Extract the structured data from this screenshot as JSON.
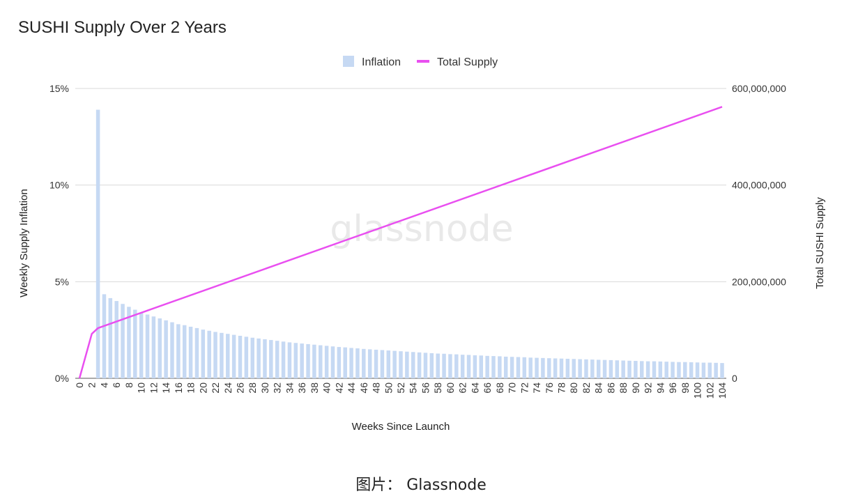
{
  "title": "SUSHI Supply Over 2 Years",
  "caption": "图片： Glassnode",
  "watermark": "glassnode",
  "colors": {
    "bar": "#c6d9f3",
    "line": "#e94ff0",
    "grid": "#d9d9d9"
  },
  "chart_data": {
    "type": "bar+line",
    "xlabel": "Weeks Since Launch",
    "ylabel_left": "Weekly Supply Inflation",
    "ylabel_right": "Total SUSHI Supply",
    "legend": [
      "Inflation",
      "Total Supply"
    ],
    "legend_position": "top-center",
    "grid": true,
    "x_ticks": [
      "0",
      "2",
      "4",
      "6",
      "8",
      "10",
      "12",
      "14",
      "16",
      "18",
      "20",
      "22",
      "24",
      "26",
      "28",
      "30",
      "32",
      "34",
      "36",
      "38",
      "40",
      "42",
      "44",
      "46",
      "48",
      "50",
      "52",
      "54",
      "56",
      "58",
      "60",
      "62",
      "64",
      "66",
      "68",
      "70",
      "72",
      "74",
      "76",
      "78",
      "80",
      "82",
      "84",
      "86",
      "88",
      "90",
      "92",
      "94",
      "96",
      "98",
      "100",
      "102",
      "104"
    ],
    "y_left_ticks": [
      "0%",
      "5%",
      "10%",
      "15%"
    ],
    "y_left_range": [
      0,
      15
    ],
    "y_right_ticks": [
      "0",
      "200,000,000",
      "400,000,000",
      "600,000,000"
    ],
    "y_right_range": [
      0,
      600000000
    ],
    "series": [
      {
        "name": "Inflation",
        "type": "bar",
        "x_start": 3,
        "values": [
          13.9,
          4.35,
          4.15,
          4.0,
          3.85,
          3.7,
          3.55,
          3.4,
          3.3,
          3.2,
          3.1,
          3.0,
          2.9,
          2.8,
          2.75,
          2.67,
          2.6,
          2.52,
          2.46,
          2.4,
          2.35,
          2.3,
          2.25,
          2.2,
          2.15,
          2.1,
          2.06,
          2.02,
          1.98,
          1.94,
          1.9,
          1.86,
          1.83,
          1.8,
          1.77,
          1.74,
          1.71,
          1.68,
          1.65,
          1.62,
          1.6,
          1.57,
          1.55,
          1.52,
          1.5,
          1.48,
          1.46,
          1.44,
          1.42,
          1.4,
          1.38,
          1.36,
          1.34,
          1.32,
          1.3,
          1.28,
          1.27,
          1.25,
          1.24,
          1.22,
          1.21,
          1.19,
          1.18,
          1.16,
          1.15,
          1.14,
          1.12,
          1.11,
          1.1,
          1.09,
          1.07,
          1.06,
          1.05,
          1.04,
          1.03,
          1.02,
          1.01,
          1.0,
          0.99,
          0.98,
          0.97,
          0.96,
          0.95,
          0.94,
          0.93,
          0.92,
          0.91,
          0.9,
          0.89,
          0.88,
          0.88,
          0.87,
          0.86,
          0.85,
          0.84,
          0.84,
          0.83,
          0.82,
          0.81,
          0.81,
          0.8,
          0.79
        ]
      },
      {
        "name": "Total Supply",
        "type": "line",
        "points": [
          [
            0,
            0
          ],
          [
            2,
            92000000
          ],
          [
            3,
            104000000
          ],
          [
            104,
            562000000
          ]
        ]
      }
    ]
  }
}
